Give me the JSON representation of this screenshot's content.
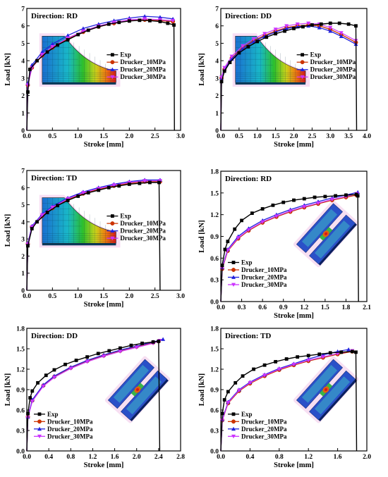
{
  "colors": {
    "Exp": "#000000",
    "Drucker_10MPa": "#cc3300",
    "Drucker_20MPa": "#2222dd",
    "Drucker_30MPa": "#cc33ff"
  },
  "markers": {
    "Exp": "square",
    "Drucker_10MPa": "circle",
    "Drucker_20MPa": "triangle-up",
    "Drucker_30MPa": "triangle-down"
  },
  "chart_data": [
    {
      "type": "line",
      "direction_label": "Direction: RD",
      "xlabel": "Stroke [mm]",
      "ylabel": "Load [kN]",
      "xlim": [
        0,
        3.0
      ],
      "ylim": [
        0,
        7
      ],
      "xticks": [
        "0.0",
        "0.5",
        "1.0",
        "1.5",
        "2.0",
        "2.5",
        "3.0"
      ],
      "yticks": [
        "0",
        "1",
        "2",
        "3",
        "4",
        "5",
        "6",
        "7"
      ],
      "inset": "fe-mesh-tapered",
      "legend_position": "right-middle",
      "series": [
        {
          "name": "Exp",
          "x": [
            0.02,
            0.06,
            0.2,
            0.4,
            0.6,
            0.8,
            1.0,
            1.2,
            1.4,
            1.6,
            1.8,
            2.0,
            2.2,
            2.4,
            2.6,
            2.75,
            2.87,
            2.88
          ],
          "y": [
            2.2,
            3.5,
            4.0,
            4.5,
            4.9,
            5.2,
            5.5,
            5.75,
            5.95,
            6.1,
            6.2,
            6.28,
            6.32,
            6.3,
            6.25,
            6.15,
            6.05,
            0.0
          ]
        },
        {
          "name": "Drucker_10MPa",
          "x": [
            0.02,
            0.1,
            0.3,
            0.5,
            0.8,
            1.1,
            1.4,
            1.7,
            2.0,
            2.3,
            2.6,
            2.85
          ],
          "y": [
            2.6,
            3.6,
            4.3,
            4.75,
            5.25,
            5.65,
            5.95,
            6.15,
            6.3,
            6.35,
            6.3,
            6.25
          ]
        },
        {
          "name": "Drucker_20MPa",
          "x": [
            0.02,
            0.1,
            0.3,
            0.5,
            0.8,
            1.1,
            1.4,
            1.7,
            2.0,
            2.3,
            2.6,
            2.85
          ],
          "y": [
            2.7,
            3.75,
            4.5,
            4.95,
            5.45,
            5.85,
            6.1,
            6.3,
            6.45,
            6.55,
            6.5,
            6.4
          ]
        },
        {
          "name": "Drucker_30MPa",
          "x": [
            0.02,
            0.1,
            0.3,
            0.5,
            0.8,
            1.1,
            1.4,
            1.7,
            2.0,
            2.3,
            2.6,
            2.85
          ],
          "y": [
            2.6,
            3.6,
            4.35,
            4.8,
            5.3,
            5.7,
            6.0,
            6.2,
            6.35,
            6.4,
            6.35,
            6.3
          ]
        }
      ]
    },
    {
      "type": "line",
      "direction_label": "Direction: DD",
      "xlabel": "Stroke [mm]",
      "ylabel": "Load [kN]",
      "xlim": [
        0,
        4.0
      ],
      "ylim": [
        0,
        7
      ],
      "xticks": [
        "0.0",
        "0.5",
        "1.0",
        "1.5",
        "2.0",
        "2.5",
        "3.0",
        "3.5",
        "4.0"
      ],
      "yticks": [
        "0",
        "1",
        "2",
        "3",
        "4",
        "5",
        "6",
        "7"
      ],
      "inset": "fe-mesh-tapered",
      "legend_position": "right-middle",
      "series": [
        {
          "name": "Exp",
          "x": [
            0.02,
            0.1,
            0.25,
            0.5,
            0.75,
            1.0,
            1.25,
            1.5,
            1.75,
            2.0,
            2.25,
            2.5,
            2.75,
            3.0,
            3.25,
            3.5,
            3.7,
            3.72
          ],
          "y": [
            2.8,
            3.4,
            3.9,
            4.45,
            4.8,
            5.1,
            5.35,
            5.55,
            5.7,
            5.85,
            5.95,
            6.05,
            6.1,
            6.15,
            6.15,
            6.1,
            6.0,
            0.0
          ]
        },
        {
          "name": "Drucker_10MPa",
          "x": [
            0.02,
            0.1,
            0.3,
            0.6,
            0.9,
            1.2,
            1.5,
            1.8,
            2.1,
            2.4,
            2.7,
            3.0,
            3.3,
            3.7
          ],
          "y": [
            3.0,
            3.5,
            4.15,
            4.75,
            5.15,
            5.45,
            5.7,
            5.9,
            6.0,
            6.05,
            6.0,
            5.8,
            5.5,
            5.05
          ]
        },
        {
          "name": "Drucker_20MPa",
          "x": [
            0.02,
            0.1,
            0.3,
            0.6,
            0.9,
            1.2,
            1.5,
            1.8,
            2.1,
            2.4,
            2.7,
            3.0,
            3.3,
            3.7
          ],
          "y": [
            3.0,
            3.5,
            4.1,
            4.7,
            5.1,
            5.4,
            5.65,
            5.85,
            5.95,
            6.0,
            5.9,
            5.7,
            5.4,
            4.95
          ]
        },
        {
          "name": "Drucker_30MPa",
          "x": [
            0.02,
            0.1,
            0.3,
            0.6,
            0.9,
            1.2,
            1.5,
            1.8,
            2.1,
            2.4,
            2.7,
            3.0,
            3.3,
            3.7
          ],
          "y": [
            3.05,
            3.6,
            4.25,
            4.85,
            5.25,
            5.55,
            5.8,
            6.0,
            6.1,
            6.15,
            6.1,
            5.9,
            5.6,
            5.15
          ]
        }
      ]
    },
    {
      "type": "line",
      "direction_label": "Direction: TD",
      "xlabel": "Stroke [mm]",
      "ylabel": "Load [kN]",
      "xlim": [
        0,
        3.0
      ],
      "ylim": [
        0,
        7
      ],
      "xticks": [
        "0.0",
        "0.5",
        "1.0",
        "1.5",
        "2.0",
        "2.5",
        "3.0"
      ],
      "yticks": [
        "0",
        "1",
        "2",
        "3",
        "4",
        "5",
        "6",
        "7"
      ],
      "inset": "fe-mesh-tapered",
      "legend_position": "right-middle",
      "series": [
        {
          "name": "Exp",
          "x": [
            0.02,
            0.1,
            0.2,
            0.4,
            0.6,
            0.8,
            1.0,
            1.2,
            1.4,
            1.6,
            1.8,
            2.0,
            2.2,
            2.4,
            2.58,
            2.6
          ],
          "y": [
            2.6,
            3.6,
            4.0,
            4.55,
            4.95,
            5.25,
            5.5,
            5.7,
            5.85,
            6.0,
            6.1,
            6.2,
            6.25,
            6.3,
            6.3,
            0.0
          ]
        },
        {
          "name": "Drucker_10MPa",
          "x": [
            0.02,
            0.1,
            0.3,
            0.5,
            0.8,
            1.1,
            1.4,
            1.7,
            2.0,
            2.3,
            2.6
          ],
          "y": [
            2.7,
            3.7,
            4.35,
            4.8,
            5.3,
            5.65,
            5.9,
            6.1,
            6.25,
            6.35,
            6.35
          ]
        },
        {
          "name": "Drucker_20MPa",
          "x": [
            0.02,
            0.1,
            0.3,
            0.5,
            0.8,
            1.1,
            1.4,
            1.7,
            2.0,
            2.3,
            2.6
          ],
          "y": [
            2.75,
            3.75,
            4.45,
            4.9,
            5.4,
            5.75,
            6.0,
            6.2,
            6.35,
            6.45,
            6.45
          ]
        },
        {
          "name": "Drucker_30MPa",
          "x": [
            0.02,
            0.1,
            0.3,
            0.5,
            0.8,
            1.1,
            1.4,
            1.7,
            2.0,
            2.3,
            2.6
          ],
          "y": [
            2.7,
            3.7,
            4.4,
            4.85,
            5.35,
            5.7,
            5.95,
            6.15,
            6.3,
            6.4,
            6.4
          ]
        }
      ]
    },
    {
      "type": "line",
      "direction_label": "Direction: RD",
      "xlabel": "Stroke [mm]",
      "ylabel": "Load [kN]",
      "xlim": [
        0,
        2.1
      ],
      "ylim": [
        0,
        1.8
      ],
      "xticks": [
        "0.0",
        "0.3",
        "0.6",
        "0.9",
        "1.2",
        "1.5",
        "1.8",
        "2.1"
      ],
      "yticks": [
        "0.0",
        "0.3",
        "0.6",
        "0.9",
        "1.2",
        "1.5",
        "1.8"
      ],
      "inset": "fe-notched-plate",
      "legend_position": "bottom-left",
      "series": [
        {
          "name": "Exp",
          "x": [
            0.02,
            0.06,
            0.1,
            0.2,
            0.3,
            0.45,
            0.6,
            0.75,
            0.9,
            1.05,
            1.2,
            1.35,
            1.5,
            1.65,
            1.8,
            1.95,
            1.97,
            1.98
          ],
          "y": [
            0.5,
            0.72,
            0.83,
            1.0,
            1.12,
            1.22,
            1.28,
            1.33,
            1.37,
            1.4,
            1.42,
            1.44,
            1.45,
            1.46,
            1.47,
            1.48,
            1.46,
            0.0
          ]
        },
        {
          "name": "Drucker_10MPa",
          "x": [
            0.02,
            0.1,
            0.25,
            0.4,
            0.6,
            0.8,
            1.0,
            1.2,
            1.4,
            1.6,
            1.8,
            1.95
          ],
          "y": [
            0.45,
            0.7,
            0.87,
            0.98,
            1.09,
            1.17,
            1.24,
            1.3,
            1.35,
            1.4,
            1.44,
            1.47
          ]
        },
        {
          "name": "Drucker_20MPa",
          "x": [
            0.02,
            0.1,
            0.25,
            0.4,
            0.6,
            0.8,
            1.0,
            1.2,
            1.4,
            1.6,
            1.8,
            1.97
          ],
          "y": [
            0.47,
            0.72,
            0.9,
            1.01,
            1.12,
            1.2,
            1.27,
            1.33,
            1.38,
            1.43,
            1.47,
            1.51
          ]
        },
        {
          "name": "Drucker_30MPa",
          "x": [
            0.02,
            0.1,
            0.25,
            0.4,
            0.6,
            0.8,
            1.0,
            1.2,
            1.4,
            1.6,
            1.8,
            1.96
          ],
          "y": [
            0.46,
            0.71,
            0.88,
            0.99,
            1.1,
            1.18,
            1.25,
            1.31,
            1.36,
            1.41,
            1.45,
            1.49
          ]
        }
      ]
    },
    {
      "type": "line",
      "direction_label": "Direction: DD",
      "xlabel": "Stroke [mm]",
      "ylabel": "Load [kN]",
      "xlim": [
        0,
        2.8
      ],
      "ylim": [
        0,
        1.8
      ],
      "xticks": [
        "0.0",
        "0.4",
        "0.8",
        "1.2",
        "1.6",
        "2.0",
        "2.4",
        "2.8"
      ],
      "yticks": [
        "0.0",
        "0.3",
        "0.6",
        "0.9",
        "1.2",
        "1.5",
        "1.8"
      ],
      "inset": "fe-notched-plate",
      "legend_position": "bottom-left",
      "series": [
        {
          "name": "Exp",
          "x": [
            0.02,
            0.06,
            0.1,
            0.2,
            0.35,
            0.5,
            0.7,
            0.9,
            1.1,
            1.3,
            1.5,
            1.7,
            1.9,
            2.1,
            2.3,
            2.4,
            2.42
          ],
          "y": [
            0.55,
            0.78,
            0.88,
            1.0,
            1.11,
            1.19,
            1.27,
            1.33,
            1.38,
            1.43,
            1.47,
            1.51,
            1.55,
            1.58,
            1.6,
            1.61,
            0.0
          ]
        },
        {
          "name": "Drucker_10MPa",
          "x": [
            0.02,
            0.1,
            0.3,
            0.5,
            0.8,
            1.1,
            1.4,
            1.7,
            2.0,
            2.3,
            2.4
          ],
          "y": [
            0.5,
            0.74,
            0.96,
            1.09,
            1.22,
            1.32,
            1.4,
            1.47,
            1.53,
            1.59,
            1.61
          ]
        },
        {
          "name": "Drucker_20MPa",
          "x": [
            0.02,
            0.1,
            0.3,
            0.5,
            0.8,
            1.1,
            1.4,
            1.7,
            2.0,
            2.3,
            2.48
          ],
          "y": [
            0.5,
            0.75,
            0.97,
            1.1,
            1.23,
            1.33,
            1.41,
            1.48,
            1.54,
            1.6,
            1.64
          ]
        },
        {
          "name": "Drucker_30MPa",
          "x": [
            0.02,
            0.1,
            0.3,
            0.5,
            0.8,
            1.1,
            1.4,
            1.7,
            2.0,
            2.3,
            2.42
          ],
          "y": [
            0.49,
            0.73,
            0.95,
            1.08,
            1.21,
            1.31,
            1.39,
            1.46,
            1.52,
            1.58,
            1.62
          ]
        }
      ]
    },
    {
      "type": "line",
      "direction_label": "Direction: TD",
      "xlabel": "Stroke [mm]",
      "ylabel": "Load [kN]",
      "xlim": [
        0,
        2.0
      ],
      "ylim": [
        0,
        1.8
      ],
      "xticks": [
        "0.0",
        "0.4",
        "0.8",
        "1.2",
        "1.6",
        "2.0"
      ],
      "yticks": [
        "0.0",
        "0.3",
        "0.6",
        "0.9",
        "1.2",
        "1.5",
        "1.8"
      ],
      "inset": "fe-notched-plate",
      "legend_position": "bottom-left",
      "series": [
        {
          "name": "Exp",
          "x": [
            0.02,
            0.05,
            0.1,
            0.2,
            0.3,
            0.45,
            0.6,
            0.75,
            0.9,
            1.05,
            1.2,
            1.35,
            1.5,
            1.65,
            1.8,
            1.85,
            1.86
          ],
          "y": [
            0.55,
            0.75,
            0.87,
            1.0,
            1.1,
            1.2,
            1.26,
            1.31,
            1.35,
            1.38,
            1.4,
            1.42,
            1.44,
            1.45,
            1.46,
            1.45,
            0.0
          ]
        },
        {
          "name": "Drucker_10MPa",
          "x": [
            0.02,
            0.1,
            0.25,
            0.4,
            0.6,
            0.8,
            1.0,
            1.2,
            1.4,
            1.6,
            1.8
          ],
          "y": [
            0.45,
            0.7,
            0.88,
            0.99,
            1.1,
            1.19,
            1.26,
            1.32,
            1.37,
            1.42,
            1.46
          ]
        },
        {
          "name": "Drucker_20MPa",
          "x": [
            0.02,
            0.1,
            0.25,
            0.4,
            0.6,
            0.8,
            1.0,
            1.2,
            1.4,
            1.6,
            1.75
          ],
          "y": [
            0.46,
            0.72,
            0.9,
            1.01,
            1.12,
            1.21,
            1.28,
            1.35,
            1.41,
            1.46,
            1.49
          ]
        },
        {
          "name": "Drucker_30MPa",
          "x": [
            0.02,
            0.1,
            0.25,
            0.4,
            0.6,
            0.8,
            1.0,
            1.2,
            1.4,
            1.6,
            1.8
          ],
          "y": [
            0.45,
            0.71,
            0.89,
            1.0,
            1.11,
            1.2,
            1.27,
            1.33,
            1.38,
            1.43,
            1.47
          ]
        }
      ]
    }
  ]
}
